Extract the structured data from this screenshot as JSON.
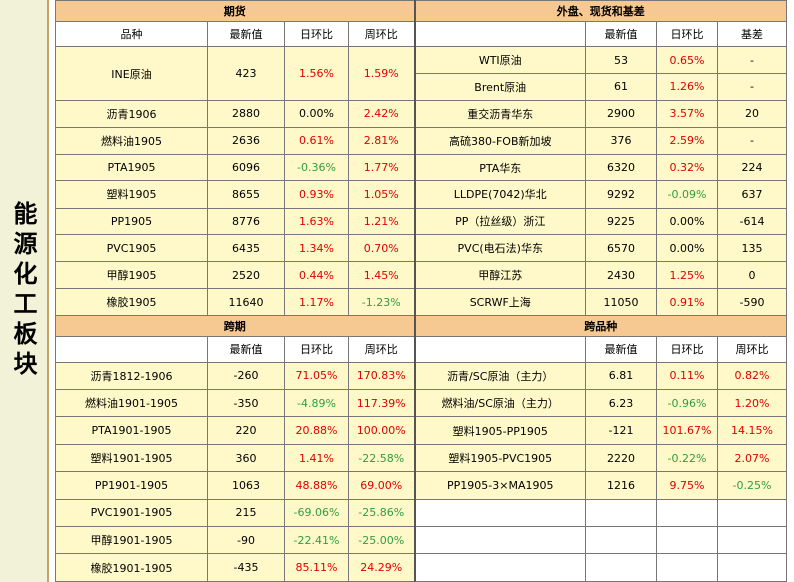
{
  "side_title": "能源化工板块",
  "futures": {
    "title": "期货",
    "headers": [
      "品种",
      "最新值",
      "日环比",
      "周环比"
    ],
    "rows": [
      {
        "name": "INE原油",
        "value": "423",
        "day": "1.56%",
        "day_s": "pos",
        "week": "1.59%",
        "week_s": "pos"
      },
      {
        "name": "沥青1906",
        "value": "2880",
        "day": "0.00%",
        "day_s": "",
        "week": "2.42%",
        "week_s": "pos"
      },
      {
        "name": "燃料油1905",
        "value": "2636",
        "day": "0.61%",
        "day_s": "pos",
        "week": "2.81%",
        "week_s": "pos"
      },
      {
        "name": "PTA1905",
        "value": "6096",
        "day": "-0.36%",
        "day_s": "neg",
        "week": "1.77%",
        "week_s": "pos"
      },
      {
        "name": "塑料1905",
        "value": "8655",
        "day": "0.93%",
        "day_s": "pos",
        "week": "1.05%",
        "week_s": "pos"
      },
      {
        "name": "PP1905",
        "value": "8776",
        "day": "1.63%",
        "day_s": "pos",
        "week": "1.21%",
        "week_s": "pos"
      },
      {
        "name": "PVC1905",
        "value": "6435",
        "day": "1.34%",
        "day_s": "pos",
        "week": "0.70%",
        "week_s": "pos"
      },
      {
        "name": "甲醇1905",
        "value": "2520",
        "day": "0.44%",
        "day_s": "pos",
        "week": "1.45%",
        "week_s": "pos"
      },
      {
        "name": "橡胶1905",
        "value": "11640",
        "day": "1.17%",
        "day_s": "pos",
        "week": "-1.23%",
        "week_s": "neg"
      }
    ]
  },
  "spot": {
    "title": "外盘、现货和基差",
    "headers": [
      "",
      "最新值",
      "日环比",
      "基差"
    ],
    "rows": [
      {
        "name": "WTI原油",
        "value": "53",
        "day": "0.65%",
        "day_s": "pos",
        "basis": "-"
      },
      {
        "name": "Brent原油",
        "value": "61",
        "day": "1.26%",
        "day_s": "pos",
        "basis": "-"
      },
      {
        "name": "重交沥青华东",
        "value": "2900",
        "day": "3.57%",
        "day_s": "pos",
        "basis": "20"
      },
      {
        "name": "高硫380-FOB新加坡",
        "value": "376",
        "day": "2.59%",
        "day_s": "pos",
        "basis": "-"
      },
      {
        "name": "PTA华东",
        "value": "6320",
        "day": "0.32%",
        "day_s": "pos",
        "basis": "224"
      },
      {
        "name": "LLDPE(7042)华北",
        "value": "9292",
        "day": "-0.09%",
        "day_s": "neg",
        "basis": "637"
      },
      {
        "name": "PP（拉丝级）浙江",
        "value": "9225",
        "day": "0.00%",
        "day_s": "",
        "basis": "-614"
      },
      {
        "name": "PVC(电石法)华东",
        "value": "6570",
        "day": "0.00%",
        "day_s": "",
        "basis": "135"
      },
      {
        "name": "甲醇江苏",
        "value": "2430",
        "day": "1.25%",
        "day_s": "pos",
        "basis": "0"
      },
      {
        "name": "SCRWF上海",
        "value": "11050",
        "day": "0.91%",
        "day_s": "pos",
        "basis": "-590"
      }
    ]
  },
  "calendar": {
    "title": "跨期",
    "headers": [
      "",
      "最新值",
      "日环比",
      "周环比"
    ],
    "rows": [
      {
        "name": "沥青1812-1906",
        "value": "-260",
        "day": "71.05%",
        "day_s": "pos",
        "week": "170.83%",
        "week_s": "pos"
      },
      {
        "name": "燃料油1901-1905",
        "value": "-350",
        "day": "-4.89%",
        "day_s": "neg",
        "week": "117.39%",
        "week_s": "pos"
      },
      {
        "name": "PTA1901-1905",
        "value": "220",
        "day": "20.88%",
        "day_s": "pos",
        "week": "100.00%",
        "week_s": "pos"
      },
      {
        "name": "塑料1901-1905",
        "value": "360",
        "day": "1.41%",
        "day_s": "pos",
        "week": "-22.58%",
        "week_s": "neg"
      },
      {
        "name": "PP1901-1905",
        "value": "1063",
        "day": "48.88%",
        "day_s": "pos",
        "week": "69.00%",
        "week_s": "pos"
      },
      {
        "name": "PVC1901-1905",
        "value": "215",
        "day": "-69.06%",
        "day_s": "neg",
        "week": "-25.86%",
        "week_s": "neg"
      },
      {
        "name": "甲醇1901-1905",
        "value": "-90",
        "day": "-22.41%",
        "day_s": "neg",
        "week": "-25.00%",
        "week_s": "neg"
      },
      {
        "name": "橡胶1901-1905",
        "value": "-435",
        "day": "85.11%",
        "day_s": "pos",
        "week": "24.29%",
        "week_s": "pos"
      }
    ]
  },
  "cross": {
    "title": "跨品种",
    "headers": [
      "",
      "最新值",
      "日环比",
      "周环比"
    ],
    "rows": [
      {
        "name": "沥青/SC原油（主力）",
        "value": "6.81",
        "day": "0.11%",
        "day_s": "pos",
        "week": "0.82%",
        "week_s": "pos"
      },
      {
        "name": "燃料油/SC原油（主力）",
        "value": "6.23",
        "day": "-0.96%",
        "day_s": "neg",
        "week": "1.20%",
        "week_s": "pos"
      },
      {
        "name": "塑料1905-PP1905",
        "value": "-121",
        "day": "101.67%",
        "day_s": "pos",
        "week": "14.15%",
        "week_s": "pos"
      },
      {
        "name": "塑料1905-PVC1905",
        "value": "2220",
        "day": "-0.22%",
        "day_s": "neg",
        "week": "2.07%",
        "week_s": "pos"
      },
      {
        "name": "PP1905-3×MA1905",
        "value": "1216",
        "day": "9.75%",
        "day_s": "pos",
        "week": "-0.25%",
        "week_s": "neg"
      }
    ]
  }
}
